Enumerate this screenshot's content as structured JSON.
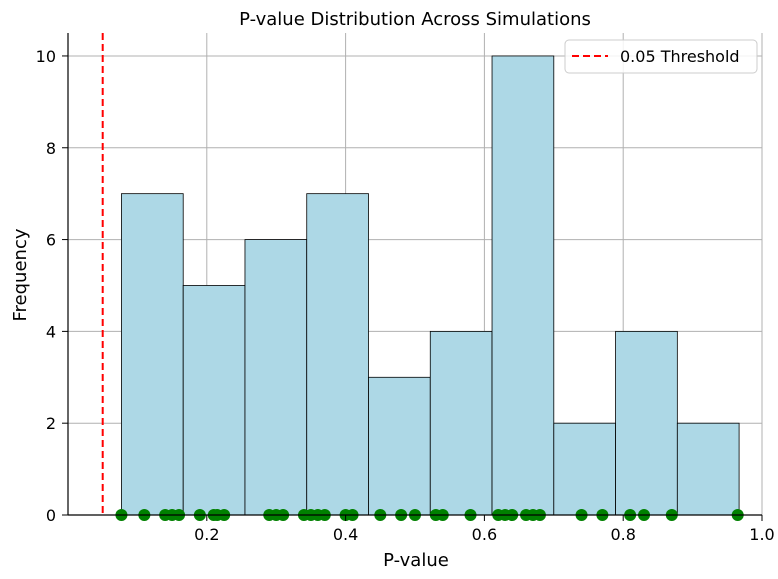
{
  "chart_data": {
    "type": "bar",
    "title": "P-value Distribution Across Simulations",
    "xlabel": "P-value",
    "ylabel": "Frequency",
    "xlim": [
      0.0,
      1.0
    ],
    "ylim": [
      0,
      10.5
    ],
    "x_ticks": [
      "0.2",
      "0.4",
      "0.6",
      "0.8",
      "1.0"
    ],
    "x_tick_values": [
      0.2,
      0.4,
      0.6,
      0.8,
      1.0
    ],
    "y_ticks": [
      "0",
      "2",
      "4",
      "6",
      "8",
      "10"
    ],
    "y_tick_values": [
      0,
      2,
      4,
      6,
      8,
      10
    ],
    "grid": true,
    "legend_position": "top-right",
    "bins": [
      {
        "start": 0.077,
        "end": 0.166,
        "count": 7
      },
      {
        "start": 0.166,
        "end": 0.255,
        "count": 5
      },
      {
        "start": 0.255,
        "end": 0.344,
        "count": 6
      },
      {
        "start": 0.344,
        "end": 0.433,
        "count": 7
      },
      {
        "start": 0.433,
        "end": 0.522,
        "count": 3
      },
      {
        "start": 0.522,
        "end": 0.611,
        "count": 4
      },
      {
        "start": 0.611,
        "end": 0.7,
        "count": 10
      },
      {
        "start": 0.7,
        "end": 0.789,
        "count": 2
      },
      {
        "start": 0.789,
        "end": 0.878,
        "count": 4
      },
      {
        "start": 0.878,
        "end": 0.967,
        "count": 2
      }
    ],
    "bar_color": "#add8e6",
    "bar_edge_color": "#000000",
    "threshold": {
      "value": 0.05,
      "label": "0.05 Threshold",
      "color": "#ff0000"
    },
    "points": {
      "color": "#008000",
      "y": 0,
      "x": [
        0.077,
        0.11,
        0.14,
        0.15,
        0.16,
        0.19,
        0.21,
        0.215,
        0.225,
        0.29,
        0.3,
        0.31,
        0.34,
        0.35,
        0.36,
        0.37,
        0.4,
        0.41,
        0.45,
        0.48,
        0.5,
        0.53,
        0.54,
        0.58,
        0.62,
        0.63,
        0.64,
        0.66,
        0.67,
        0.68,
        0.74,
        0.77,
        0.81,
        0.83,
        0.87,
        0.965
      ]
    }
  }
}
